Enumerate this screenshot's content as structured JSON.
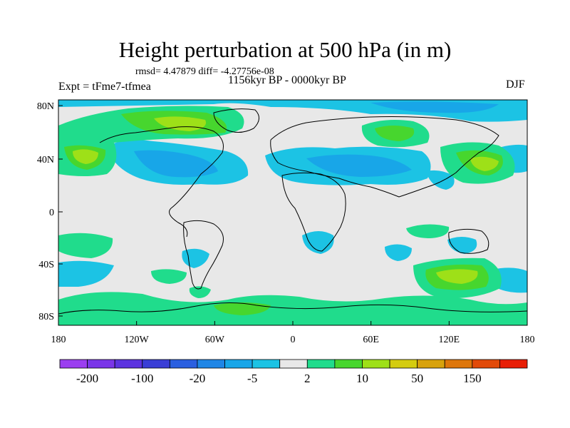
{
  "title": "Height perturbation at 500 hPa (in m)",
  "stats": "rmsd= 4.47879 diff= -4.27756e-08",
  "period": "1156kyr BP - 0000kyr BP",
  "experiment": "Expt = tFme7-tfmea",
  "season": "DJF",
  "axes": {
    "lon_ticks": [
      "180",
      "120W",
      "60W",
      "0",
      "60E",
      "120E",
      "180"
    ],
    "lat_ticks": [
      "80N",
      "40N",
      "0",
      "40S",
      "80S"
    ]
  },
  "colorbar": {
    "colors": [
      "#9b3ef0",
      "#7a35e8",
      "#5c33e0",
      "#3a3ed6",
      "#2a5fe0",
      "#1f86e6",
      "#18a6e8",
      "#1cc3e4",
      "#e8e8e8",
      "#20dc8c",
      "#47d62e",
      "#9ee018",
      "#d4cc10",
      "#d8a20c",
      "#de760a",
      "#e24a08",
      "#e81e06"
    ],
    "labels": [
      "-200",
      "-100",
      "-20",
      "-5",
      "2",
      "10",
      "50",
      "150"
    ]
  },
  "field_colors": {
    "neutral": "#e8e8e8",
    "neg1": "#1cc3e4",
    "neg2": "#18a6e8",
    "pos1": "#20dc8c",
    "pos2": "#47d62e",
    "pos3": "#9ee018",
    "coast": "#000000"
  }
}
